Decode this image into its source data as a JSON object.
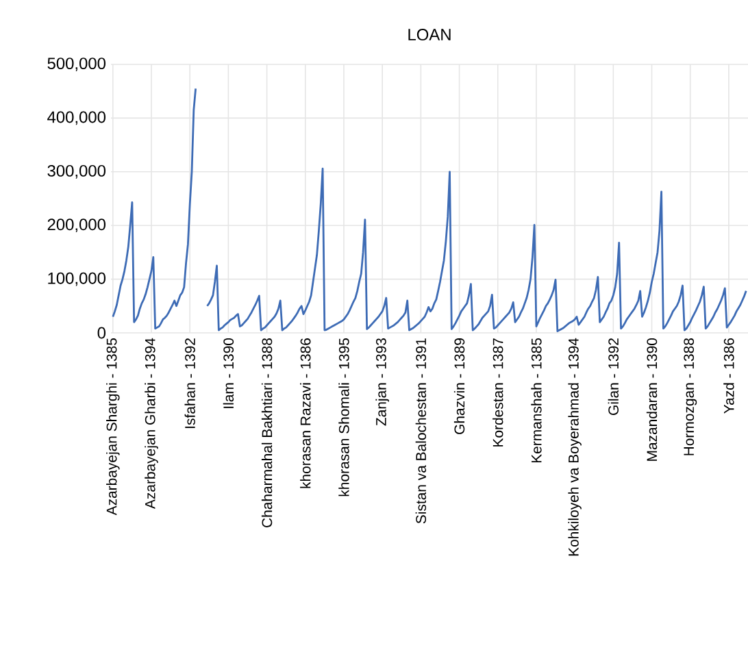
{
  "chart_data": {
    "type": "line",
    "title": "LOAN",
    "categories": [
      "Azarbayejan Sharghi - 1385",
      null,
      null,
      null,
      null,
      null,
      null,
      null,
      null,
      null,
      null,
      null,
      null,
      null,
      null,
      null,
      null,
      null,
      null,
      null,
      "Azarbayejan Gharbi - 1394",
      null,
      null,
      null,
      null,
      null,
      null,
      null,
      null,
      null,
      null,
      null,
      null,
      null,
      null,
      null,
      null,
      null,
      null,
      null,
      "Isfahan - 1392",
      null,
      null,
      null,
      null,
      null,
      null,
      null,
      null,
      null,
      null,
      null,
      null,
      null,
      null,
      null,
      null,
      null,
      null,
      null,
      "Ilam - 1390",
      null,
      null,
      null,
      null,
      null,
      null,
      null,
      null,
      null,
      null,
      null,
      null,
      null,
      null,
      null,
      null,
      null,
      null,
      null,
      "Chaharmahal Bakhtiari - 1388",
      null,
      null,
      null,
      null,
      null,
      null,
      null,
      null,
      null,
      null,
      null,
      null,
      null,
      null,
      null,
      null,
      null,
      null,
      null,
      "khorasan Razavi - 1386",
      null,
      null,
      null,
      null,
      null,
      null,
      null,
      null,
      null,
      null,
      null,
      null,
      null,
      null,
      null,
      null,
      null,
      null,
      null,
      "khorasan Shomali - 1395",
      null,
      null,
      null,
      null,
      null,
      null,
      null,
      null,
      null,
      null,
      null,
      null,
      null,
      null,
      null,
      null,
      null,
      null,
      null,
      "Zanjan - 1393",
      null,
      null,
      null,
      null,
      null,
      null,
      null,
      null,
      null,
      null,
      null,
      null,
      null,
      null,
      null,
      null,
      null,
      null,
      null,
      "Sistan va Balochestan - 1391",
      null,
      null,
      null,
      null,
      null,
      null,
      null,
      null,
      null,
      null,
      null,
      null,
      null,
      null,
      null,
      null,
      null,
      null,
      null,
      "Ghazvin - 1389",
      null,
      null,
      null,
      null,
      null,
      null,
      null,
      null,
      null,
      null,
      null,
      null,
      null,
      null,
      null,
      null,
      null,
      null,
      null,
      "Kordestan - 1387",
      null,
      null,
      null,
      null,
      null,
      null,
      null,
      null,
      null,
      null,
      null,
      null,
      null,
      null,
      null,
      null,
      null,
      null,
      null,
      "Kermanshah - 1385",
      null,
      null,
      null,
      null,
      null,
      null,
      null,
      null,
      null,
      null,
      null,
      null,
      null,
      null,
      null,
      null,
      null,
      null,
      null,
      "Kohkiloyeh va Boyerahmad - 1394",
      null,
      null,
      null,
      null,
      null,
      null,
      null,
      null,
      null,
      null,
      null,
      null,
      null,
      null,
      null,
      null,
      null,
      null,
      null,
      "Gilan - 1392",
      null,
      null,
      null,
      null,
      null,
      null,
      null,
      null,
      null,
      null,
      null,
      null,
      null,
      null,
      null,
      null,
      null,
      null,
      null,
      "Mazandaran - 1390",
      null,
      null,
      null,
      null,
      null,
      null,
      null,
      null,
      null,
      null,
      null,
      null,
      null,
      null,
      null,
      null,
      null,
      null,
      null,
      "Hormozgan - 1388",
      null,
      null,
      null,
      null,
      null,
      null,
      null,
      null,
      null,
      null,
      null,
      null,
      null,
      null,
      null,
      null,
      null,
      null,
      null,
      "Yazd - 1386",
      null,
      null,
      null,
      null,
      null,
      null,
      null,
      null,
      null
    ],
    "values": [
      30000,
      40000,
      52000,
      70000,
      88000,
      100000,
      115000,
      135000,
      160000,
      200000,
      243000,
      20000,
      25000,
      32000,
      45000,
      55000,
      62000,
      72000,
      85000,
      100000,
      115000,
      141000,
      8000,
      10000,
      12000,
      18000,
      25000,
      28000,
      32000,
      38000,
      45000,
      52000,
      60000,
      50000,
      60000,
      70000,
      75000,
      85000,
      130000,
      165000,
      240000,
      300000,
      415000,
      455000,
      null,
      null,
      null,
      null,
      null,
      50000,
      55000,
      62000,
      70000,
      95000,
      125000,
      5000,
      8000,
      10000,
      14000,
      17000,
      20000,
      24000,
      26000,
      28000,
      32000,
      35000,
      12000,
      14000,
      18000,
      22000,
      26000,
      32000,
      38000,
      45000,
      52000,
      60000,
      69000,
      5000,
      8000,
      10000,
      14000,
      18000,
      22000,
      26000,
      30000,
      36000,
      45000,
      60000,
      5000,
      8000,
      10000,
      14000,
      18000,
      22000,
      27000,
      32000,
      38000,
      45000,
      50000,
      35000,
      42000,
      50000,
      58000,
      70000,
      95000,
      120000,
      145000,
      190000,
      240000,
      306000,
      5000,
      6000,
      8000,
      10000,
      12000,
      14000,
      16000,
      18000,
      20000,
      22000,
      25000,
      30000,
      35000,
      42000,
      50000,
      58000,
      65000,
      78000,
      95000,
      110000,
      150000,
      211000,
      7000,
      10000,
      14000,
      18000,
      22000,
      26000,
      30000,
      35000,
      40000,
      50000,
      65000,
      8000,
      10000,
      12000,
      14000,
      17000,
      20000,
      24000,
      28000,
      32000,
      38000,
      60000,
      5000,
      7000,
      9000,
      12000,
      15000,
      18000,
      22000,
      26000,
      30000,
      38000,
      48000,
      40000,
      45000,
      55000,
      62000,
      78000,
      95000,
      115000,
      135000,
      170000,
      216000,
      300000,
      7000,
      12000,
      18000,
      25000,
      32000,
      40000,
      45000,
      50000,
      55000,
      70000,
      91000,
      5000,
      8000,
      12000,
      16000,
      22000,
      28000,
      32000,
      36000,
      40000,
      50000,
      71000,
      8000,
      10000,
      14000,
      18000,
      22000,
      26000,
      30000,
      34000,
      38000,
      45000,
      57000,
      20000,
      25000,
      30000,
      38000,
      45000,
      55000,
      65000,
      80000,
      100000,
      140000,
      201000,
      12000,
      20000,
      28000,
      35000,
      42000,
      50000,
      55000,
      62000,
      70000,
      80000,
      99000,
      3000,
      5000,
      7000,
      9000,
      12000,
      15000,
      18000,
      20000,
      22000,
      25000,
      30000,
      15000,
      20000,
      25000,
      30000,
      38000,
      45000,
      50000,
      58000,
      65000,
      80000,
      104000,
      20000,
      25000,
      30000,
      38000,
      45000,
      55000,
      60000,
      70000,
      85000,
      110000,
      168000,
      8000,
      12000,
      18000,
      25000,
      30000,
      35000,
      40000,
      45000,
      52000,
      60000,
      78000,
      30000,
      38000,
      48000,
      60000,
      75000,
      95000,
      110000,
      130000,
      150000,
      190000,
      263000,
      8000,
      12000,
      18000,
      25000,
      32000,
      40000,
      45000,
      50000,
      58000,
      70000,
      88000,
      5000,
      8000,
      14000,
      20000,
      28000,
      35000,
      42000,
      50000,
      58000,
      70000,
      86000,
      8000,
      12000,
      18000,
      24000,
      30000,
      38000,
      44000,
      52000,
      60000,
      70000,
      83000,
      10000,
      15000,
      20000,
      26000,
      32000,
      40000,
      46000,
      52000,
      60000,
      68000,
      78000
    ],
    "color": "#3d6bb5",
    "ylim": [
      0,
      500000
    ],
    "yticks": [
      {
        "value": 0,
        "label": "0"
      },
      {
        "value": 100000,
        "label": "100,000"
      },
      {
        "value": 200000,
        "label": "200,000"
      },
      {
        "value": 300000,
        "label": "300,000"
      },
      {
        "value": 400000,
        "label": "400,000"
      },
      {
        "value": 500000,
        "label": "500,000"
      }
    ],
    "grid": true
  }
}
